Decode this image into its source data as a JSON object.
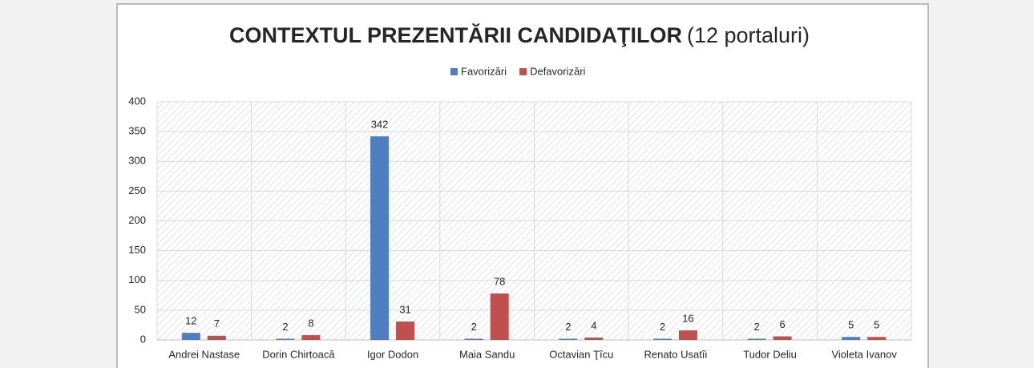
{
  "chart_data": {
    "type": "bar",
    "title": "CONTEXTUL PREZENTĂRII CANDIDAŢILOR",
    "subtitle": "(12 portaluri)",
    "categories": [
      "Andrei Nastase",
      "Dorin Chirtoacă",
      "Igor Dodon",
      "Maia Sandu",
      "Octavian Ţîcu",
      "Renato Usatîi",
      "Tudor Deliu",
      "Violeta Ivanov"
    ],
    "series": [
      {
        "name": "Favorizări",
        "color": "#4f7fc0",
        "values": [
          12,
          2,
          342,
          2,
          2,
          2,
          2,
          5
        ]
      },
      {
        "name": "Defavorizări",
        "color": "#c0504d",
        "values": [
          7,
          8,
          31,
          78,
          4,
          16,
          6,
          5
        ]
      }
    ],
    "ylim": [
      0,
      400
    ],
    "yticks": [
      0,
      50,
      100,
      150,
      200,
      250,
      300,
      350,
      400
    ],
    "grid": true,
    "legend": "top"
  }
}
